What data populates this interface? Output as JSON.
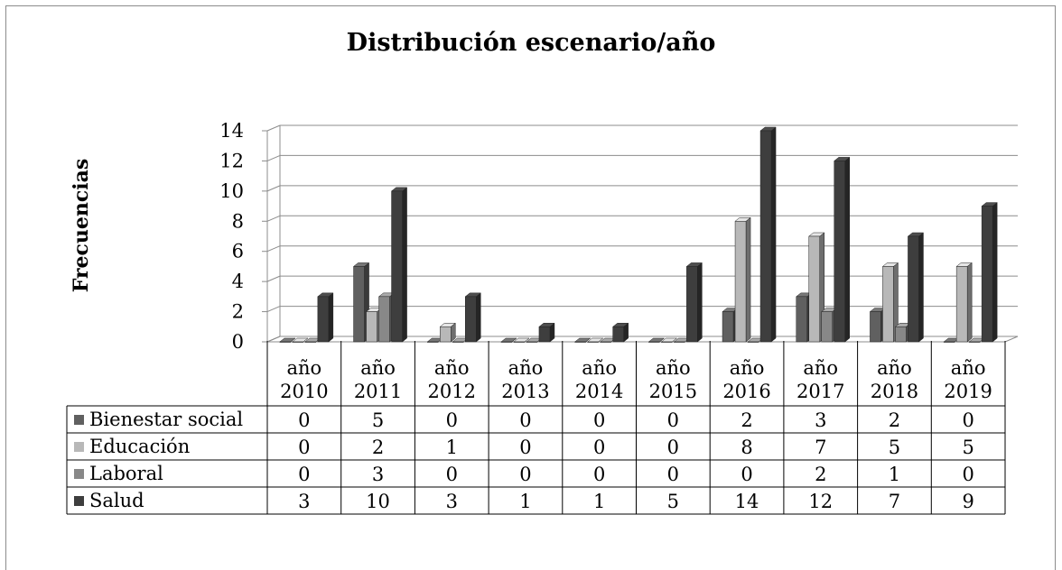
{
  "chart_data": {
    "type": "bar",
    "title": "Distribución escenario/año",
    "ylabel": "Frecuencias",
    "xlabel": "",
    "ylim": [
      0,
      14
    ],
    "yticks": [
      0,
      2,
      4,
      6,
      8,
      10,
      12,
      14
    ],
    "grid": true,
    "legend": "table-bottom",
    "categories": [
      "año 2010",
      "año 2011",
      "año 2012",
      "año 2013",
      "año 2014",
      "año 2015",
      "año 2016",
      "año 2017",
      "año 2018",
      "año 2019"
    ],
    "series": [
      {
        "name": "Bienestar social",
        "color": "#606060",
        "values": [
          0,
          5,
          0,
          0,
          0,
          0,
          2,
          3,
          2,
          0
        ]
      },
      {
        "name": "Educación",
        "color": "#b8b8b8",
        "values": [
          0,
          2,
          1,
          0,
          0,
          0,
          8,
          7,
          5,
          5
        ]
      },
      {
        "name": "Laboral",
        "color": "#888888",
        "values": [
          0,
          3,
          0,
          0,
          0,
          0,
          0,
          2,
          1,
          0
        ]
      },
      {
        "name": "Salud",
        "color": "#3e3e3e",
        "values": [
          3,
          10,
          3,
          1,
          1,
          5,
          14,
          12,
          7,
          9
        ]
      }
    ]
  }
}
